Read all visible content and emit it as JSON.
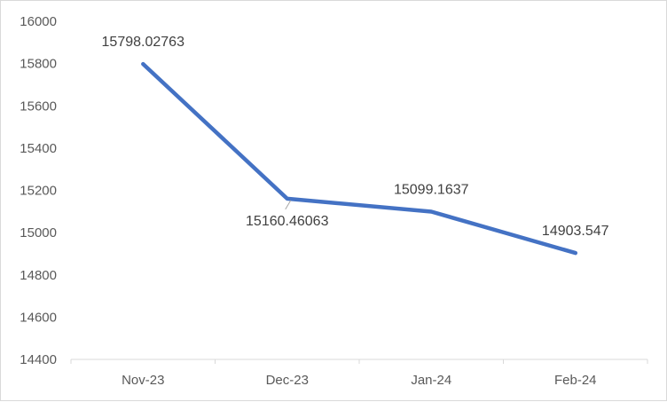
{
  "chart_data": {
    "type": "line",
    "categories": [
      "Nov-23",
      "Dec-23",
      "Jan-24",
      "Feb-24"
    ],
    "series": [
      {
        "values": [
          15798.02763,
          15160.46063,
          15099.1637,
          14903.547
        ],
        "color": "#4472c4"
      }
    ],
    "data_labels": [
      "15798.02763",
      "15160.46063",
      "15099.1637",
      "14903.547"
    ],
    "y_ticks": [
      "14400",
      "14600",
      "14800",
      "15000",
      "15200",
      "15400",
      "15600",
      "15800",
      "16000"
    ],
    "ylim": [
      14400,
      16000
    ],
    "grid": false,
    "legend": "none",
    "title": "",
    "xlabel": "",
    "ylabel": ""
  }
}
